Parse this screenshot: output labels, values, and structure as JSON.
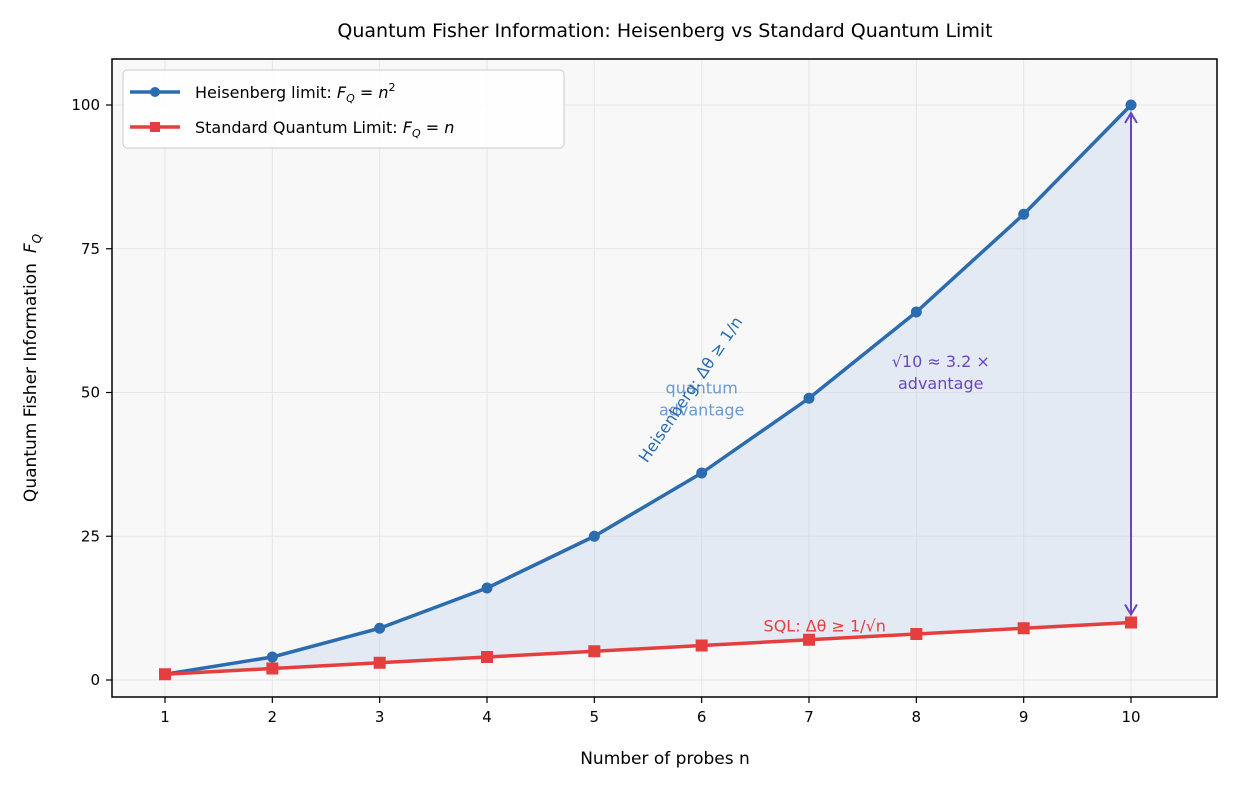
{
  "chart_data": {
    "type": "line",
    "title": "Quantum Fisher Information: Heisenberg vs Standard Quantum Limit",
    "xlabel": "Number of probes  n",
    "ylabel_text": "Quantum Fisher Information",
    "ylabel_math": "F_Q",
    "x": [
      1,
      2,
      3,
      4,
      5,
      6,
      7,
      8,
      9,
      10
    ],
    "xlim": [
      0.5,
      10.8
    ],
    "ylim": [
      -3,
      108
    ],
    "xticks": [
      1,
      2,
      3,
      4,
      5,
      6,
      7,
      8,
      9,
      10
    ],
    "yticks": [
      0,
      25,
      50,
      75,
      100
    ],
    "grid": true,
    "legend_position": "top-left",
    "series": [
      {
        "name": "Heisenberg limit: F_Q = n^2",
        "legend_prefix": "Heisenberg limit: ",
        "legend_math": "F_Q = n²",
        "values": [
          1,
          4,
          9,
          16,
          25,
          36,
          49,
          64,
          81,
          100
        ],
        "color": "#2b6cb0",
        "marker": "circle"
      },
      {
        "name": "Standard Quantum Limit: F_Q = n",
        "legend_prefix": "Standard Quantum Limit: ",
        "legend_math": "F_Q = n",
        "values": [
          1,
          2,
          3,
          4,
          5,
          6,
          7,
          8,
          9,
          10
        ],
        "color": "#e53e3e",
        "marker": "square"
      }
    ],
    "fill_between": {
      "color": "#c3d4ea",
      "label": [
        "quantum",
        "advantage"
      ],
      "label_color": "#6b9bd1",
      "label_at": [
        6,
        50
      ]
    },
    "annotations": [
      {
        "text": "Heisenberg: Δθ ≥ 1/n",
        "at": [
          6.05,
          50
        ],
        "rotation": -56,
        "color": "#2b6cb0"
      },
      {
        "text": "SQL: Δθ ≥ 1/√n",
        "at": [
          7.1,
          8.6
        ],
        "color": "#e53e3e"
      },
      {
        "text_line1": "√10 ≈ 3.2 ×",
        "text_line2": "advantage",
        "at": [
          8.6,
          55
        ],
        "color": "#6b46c1"
      },
      {
        "type": "double-arrow",
        "x": 10,
        "from": 10,
        "to": 100,
        "color": "#6b46c1"
      }
    ]
  }
}
